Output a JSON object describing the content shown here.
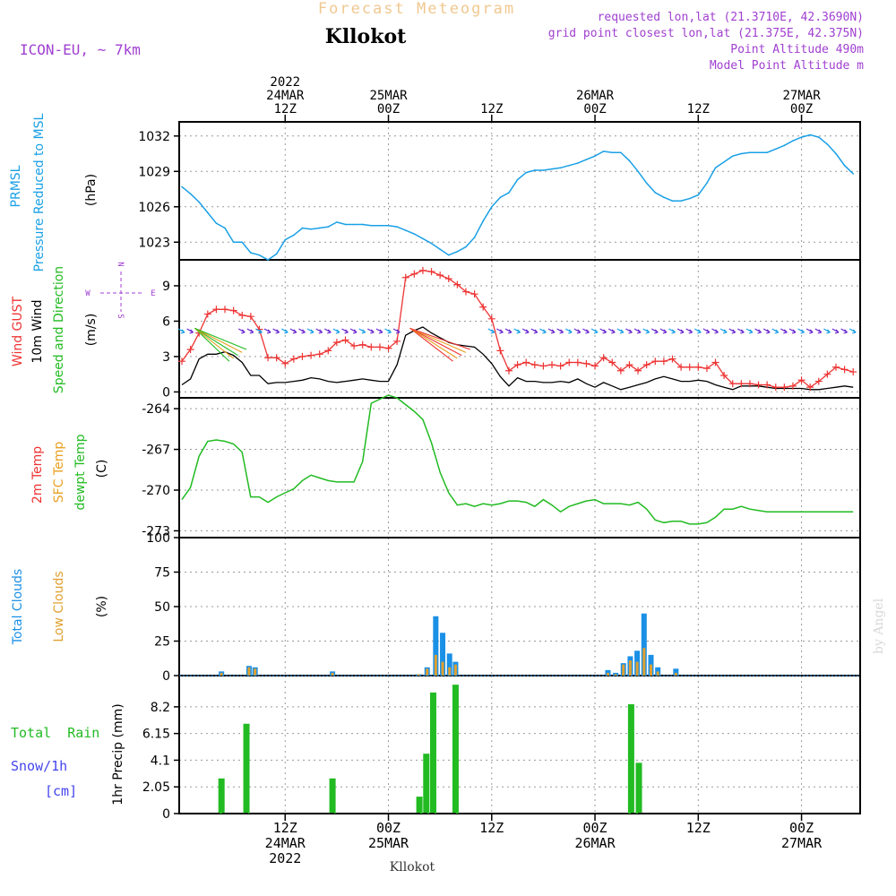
{
  "header": {
    "title": "Forecast Meteogram",
    "location": "Kllokot",
    "model": "ICON-EU, ~ 7km",
    "requested": "requested lon,lat (21.3710E, 42.3690N)",
    "grid_point": "grid point closest lon,lat (21.375E, 42.375N)",
    "point_altitude": "Point Altitude 490m",
    "model_altitude": "Model Point Altitude m",
    "watermark": "by Angel",
    "footer_label": "Kllokot"
  },
  "colors": {
    "pressure": "#1aa0e6",
    "gust": "#ee3333",
    "wind": "#000000",
    "green": "#22bb22",
    "sfc": "#e8a020",
    "total_clouds": "#1a90e6",
    "low_clouds": "#e0a030",
    "snow": "#4444ee",
    "purple": "#a040d0"
  },
  "time_axis": {
    "top_labels": [
      {
        "h": 12,
        "lines": [
          "2022",
          "24MAR",
          "12Z"
        ]
      },
      {
        "h": 24,
        "lines": [
          "25MAR",
          "00Z"
        ]
      },
      {
        "h": 36,
        "lines": [
          "12Z"
        ]
      },
      {
        "h": 48,
        "lines": [
          "26MAR",
          "00Z"
        ]
      },
      {
        "h": 60,
        "lines": [
          "12Z"
        ]
      },
      {
        "h": 72,
        "lines": [
          "27MAR",
          "00Z"
        ]
      }
    ],
    "bottom_labels": [
      {
        "h": 12,
        "lines": [
          "12Z",
          "24MAR",
          "2022"
        ]
      },
      {
        "h": 24,
        "lines": [
          "00Z",
          "25MAR"
        ]
      },
      {
        "h": 36,
        "lines": [
          "12Z"
        ]
      },
      {
        "h": 48,
        "lines": [
          "00Z",
          "26MAR"
        ]
      },
      {
        "h": 60,
        "lines": [
          "12Z"
        ]
      },
      {
        "h": 72,
        "lines": [
          "00Z",
          "27MAR"
        ]
      }
    ]
  },
  "panel_labels": {
    "pressure": [
      "PRMSL",
      "Pressure Reduced to MSL",
      "(hPa)"
    ],
    "wind": [
      "Wind GUST",
      "10m Wind",
      "Speed and Direction",
      "(m/s)"
    ],
    "compass": {
      "n": "N",
      "s": "S",
      "w": "W",
      "e": "E"
    },
    "temp": [
      "2m Temp",
      "SFC Temp",
      "dewpt Temp",
      "(C)"
    ],
    "clouds": [
      "Total Clouds",
      "Low Clouds",
      "(%)"
    ],
    "precip": [
      "Total  Rain",
      "Snow/1h",
      "[cm]",
      "1hr Precip (mm)"
    ]
  },
  "chart_data": [
    {
      "type": "line",
      "name": "PRMSL",
      "ylim": [
        1021.5,
        1033.2
      ],
      "yticks": [
        "1023",
        "1026",
        "1029",
        "1032"
      ],
      "x_hours": [
        0,
        1,
        2,
        3,
        4,
        5,
        6,
        7,
        8,
        9,
        10,
        11,
        12,
        13,
        14,
        15,
        16,
        17,
        18,
        19,
        20,
        21,
        22,
        23,
        24,
        25,
        26,
        27,
        28,
        29,
        30,
        31,
        32,
        33,
        34,
        35,
        36,
        37,
        38,
        39,
        40,
        41,
        42,
        43,
        44,
        45,
        46,
        47,
        48,
        49,
        50,
        51,
        52,
        53,
        54,
        55,
        56,
        57,
        58,
        59,
        60,
        61,
        62,
        63,
        64,
        65,
        66,
        67,
        68,
        69,
        70,
        71,
        72,
        73,
        74,
        75,
        76,
        77,
        78
      ],
      "values": [
        1027.7,
        1027.1,
        1026.4,
        1025.5,
        1024.6,
        1024.2,
        1023.0,
        1023.0,
        1022.1,
        1021.9,
        1021.5,
        1022.0,
        1023.2,
        1023.6,
        1024.2,
        1024.1,
        1024.2,
        1024.3,
        1024.7,
        1024.5,
        1024.5,
        1024.5,
        1024.4,
        1024.4,
        1024.4,
        1024.3,
        1024.0,
        1023.7,
        1023.3,
        1022.9,
        1022.4,
        1021.9,
        1022.2,
        1022.6,
        1023.4,
        1024.8,
        1026.0,
        1026.8,
        1027.2,
        1028.3,
        1028.9,
        1029.1,
        1029.1,
        1029.2,
        1029.3,
        1029.5,
        1029.7,
        1030.0,
        1030.3,
        1030.7,
        1030.6,
        1030.6,
        1029.9,
        1029.0,
        1028.0,
        1027.2,
        1026.8,
        1026.5,
        1026.5,
        1026.7,
        1027.0,
        1028.0,
        1029.3,
        1029.8,
        1030.3,
        1030.5,
        1030.6,
        1030.6,
        1030.6,
        1030.9,
        1031.2,
        1031.6,
        1031.9,
        1032.1,
        1031.9,
        1031.3,
        1030.5,
        1029.5,
        1028.8
      ]
    },
    {
      "type": "line",
      "name": "Wind GUST",
      "ylim": [
        -0.5,
        11.2
      ],
      "yticks": [
        "0",
        "3",
        "6",
        "9"
      ],
      "x_hours": [
        0,
        1,
        2,
        3,
        4,
        5,
        6,
        7,
        8,
        9,
        10,
        11,
        12,
        13,
        14,
        15,
        16,
        17,
        18,
        19,
        20,
        21,
        22,
        23,
        24,
        25,
        26,
        27,
        28,
        29,
        30,
        31,
        32,
        33,
        34,
        35,
        36,
        37,
        38,
        39,
        40,
        41,
        42,
        43,
        44,
        45,
        46,
        47,
        48,
        49,
        50,
        51,
        52,
        53,
        54,
        55,
        56,
        57,
        58,
        59,
        60,
        61,
        62,
        63,
        64,
        65,
        66,
        67,
        68,
        69,
        70,
        71,
        72,
        73,
        74,
        75,
        76,
        77,
        78
      ],
      "gust": [
        2.6,
        3.6,
        5.0,
        6.6,
        7.0,
        7.0,
        6.9,
        6.5,
        6.4,
        5.3,
        2.9,
        2.9,
        2.4,
        2.8,
        3.0,
        3.1,
        3.2,
        3.5,
        4.2,
        4.4,
        3.9,
        4.0,
        3.8,
        3.8,
        3.7,
        4.3,
        9.7,
        10.0,
        10.3,
        10.2,
        9.9,
        9.6,
        9.1,
        8.5,
        8.3,
        7.2,
        6.2,
        3.5,
        1.8,
        2.3,
        2.5,
        2.3,
        2.2,
        2.3,
        2.2,
        2.5,
        2.5,
        2.4,
        2.2,
        2.9,
        2.5,
        1.8,
        2.3,
        1.8,
        2.3,
        2.6,
        2.6,
        2.8,
        2.1,
        2.1,
        2.1,
        2.0,
        2.5,
        1.4,
        0.7,
        0.7,
        0.7,
        0.6,
        0.6,
        0.4,
        0.4,
        0.5,
        1.0,
        0.4,
        0.9,
        1.5,
        2.1,
        1.9,
        1.7
      ],
      "wind": [
        0.6,
        1.1,
        2.8,
        3.2,
        3.2,
        3.4,
        3.1,
        2.5,
        1.4,
        1.4,
        0.7,
        0.8,
        0.8,
        0.9,
        1.0,
        1.2,
        1.1,
        0.9,
        0.8,
        0.9,
        1.0,
        1.1,
        1.0,
        0.9,
        0.9,
        2.3,
        4.8,
        5.2,
        5.5,
        5.0,
        4.6,
        4.2,
        4.0,
        3.9,
        3.8,
        3.2,
        2.4,
        1.3,
        0.5,
        1.2,
        0.9,
        0.9,
        0.8,
        0.8,
        0.9,
        0.8,
        1.1,
        0.7,
        0.4,
        0.8,
        0.5,
        0.2,
        0.4,
        0.6,
        0.8,
        1.1,
        1.3,
        1.1,
        0.9,
        0.9,
        1.0,
        0.9,
        0.6,
        0.4,
        0.2,
        0.5,
        0.5,
        0.5,
        0.4,
        0.3,
        0.3,
        0.3,
        0.3,
        0.2,
        0.2,
        0.3,
        0.4,
        0.5,
        0.4
      ]
    },
    {
      "type": "line",
      "name": "dewpt Temp",
      "ylim": [
        -273.5,
        -263.2
      ],
      "yticks": [
        "-264",
        "-267",
        "-270",
        "-273"
      ],
      "x_hours": [
        0,
        1,
        2,
        3,
        4,
        5,
        6,
        7,
        8,
        9,
        10,
        11,
        12,
        13,
        14,
        15,
        16,
        17,
        18,
        19,
        20,
        21,
        22,
        23,
        24,
        25,
        26,
        27,
        28,
        29,
        30,
        31,
        32,
        33,
        34,
        35,
        36,
        37,
        38,
        39,
        40,
        41,
        42,
        43,
        44,
        45,
        46,
        47,
        48,
        49,
        50,
        51,
        52,
        53,
        54,
        55,
        56,
        57,
        58,
        59,
        60,
        61,
        62,
        63,
        64,
        65,
        66,
        67,
        68,
        69,
        70,
        71,
        72,
        73,
        74,
        75,
        76,
        77,
        78
      ],
      "values": [
        -270.7,
        -269.8,
        -267.5,
        -266.4,
        -266.3,
        -266.4,
        -266.6,
        -267.2,
        -270.5,
        -270.5,
        -270.9,
        -270.5,
        -270.2,
        -269.9,
        -269.3,
        -268.9,
        -269.1,
        -269.3,
        -269.4,
        -269.4,
        -269.4,
        -267.9,
        -263.6,
        -263.3,
        -263.0,
        -263.2,
        -263.7,
        -264.2,
        -264.8,
        -266.5,
        -268.7,
        -270.2,
        -271.1,
        -271.0,
        -271.2,
        -271.0,
        -271.1,
        -271.0,
        -270.8,
        -270.8,
        -270.9,
        -271.2,
        -270.7,
        -271.1,
        -271.6,
        -271.2,
        -271.0,
        -270.8,
        -270.7,
        -271.0,
        -271.0,
        -271.0,
        -271.1,
        -270.9,
        -271.4,
        -272.2,
        -272.4,
        -272.3,
        -272.3,
        -272.5,
        -272.5,
        -272.4,
        -272.0,
        -271.4,
        -271.4,
        -271.2,
        -271.4,
        -271.5,
        -271.6,
        -271.6,
        -271.6,
        -271.6,
        -271.6,
        -271.6,
        -271.6,
        -271.6,
        -271.6,
        -271.6,
        -271.6
      ]
    },
    {
      "type": "bar",
      "name": "Clouds",
      "ylim": [
        0,
        100
      ],
      "yticks": [
        "0",
        "25",
        "50",
        "75",
        "100"
      ],
      "bars": [
        {
          "h": 4.6,
          "total": 3,
          "low": 2
        },
        {
          "h": 7.8,
          "total": 7,
          "low": 6
        },
        {
          "h": 8.5,
          "total": 6,
          "low": 5
        },
        {
          "h": 17.5,
          "total": 3,
          "low": 2
        },
        {
          "h": 27.5,
          "total": 1,
          "low": 1
        },
        {
          "h": 28.5,
          "total": 6,
          "low": 5
        },
        {
          "h": 29.5,
          "total": 43,
          "low": 15
        },
        {
          "h": 30.3,
          "total": 31,
          "low": 10
        },
        {
          "h": 31.1,
          "total": 16,
          "low": 6
        },
        {
          "h": 31.8,
          "total": 10,
          "low": 8
        },
        {
          "h": 49.5,
          "total": 4,
          "low": 2
        },
        {
          "h": 50.4,
          "total": 2,
          "low": 1
        },
        {
          "h": 51.3,
          "total": 9,
          "low": 8
        },
        {
          "h": 52.1,
          "total": 14,
          "low": 11
        },
        {
          "h": 52.9,
          "total": 18,
          "low": 10
        },
        {
          "h": 53.7,
          "total": 45,
          "low": 20
        },
        {
          "h": 54.5,
          "total": 15,
          "low": 8
        },
        {
          "h": 55.3,
          "total": 6,
          "low": 3
        },
        {
          "h": 57.4,
          "total": 5,
          "low": 2
        }
      ]
    },
    {
      "type": "bar",
      "name": "1hr Precip",
      "ylim": [
        0,
        10.6
      ],
      "yticks": [
        "0",
        "2.05",
        "4.1",
        "6.15",
        "8.2"
      ],
      "bars": [
        {
          "h": 4.6,
          "value": 2.7
        },
        {
          "h": 7.5,
          "value": 6.9
        },
        {
          "h": 17.5,
          "value": 2.7
        },
        {
          "h": 27.6,
          "value": 1.3
        },
        {
          "h": 28.4,
          "value": 4.6
        },
        {
          "h": 29.2,
          "value": 9.3
        },
        {
          "h": 31.8,
          "value": 9.9
        },
        {
          "h": 52.2,
          "value": 8.4
        },
        {
          "h": 53.1,
          "value": 3.9
        }
      ]
    }
  ]
}
